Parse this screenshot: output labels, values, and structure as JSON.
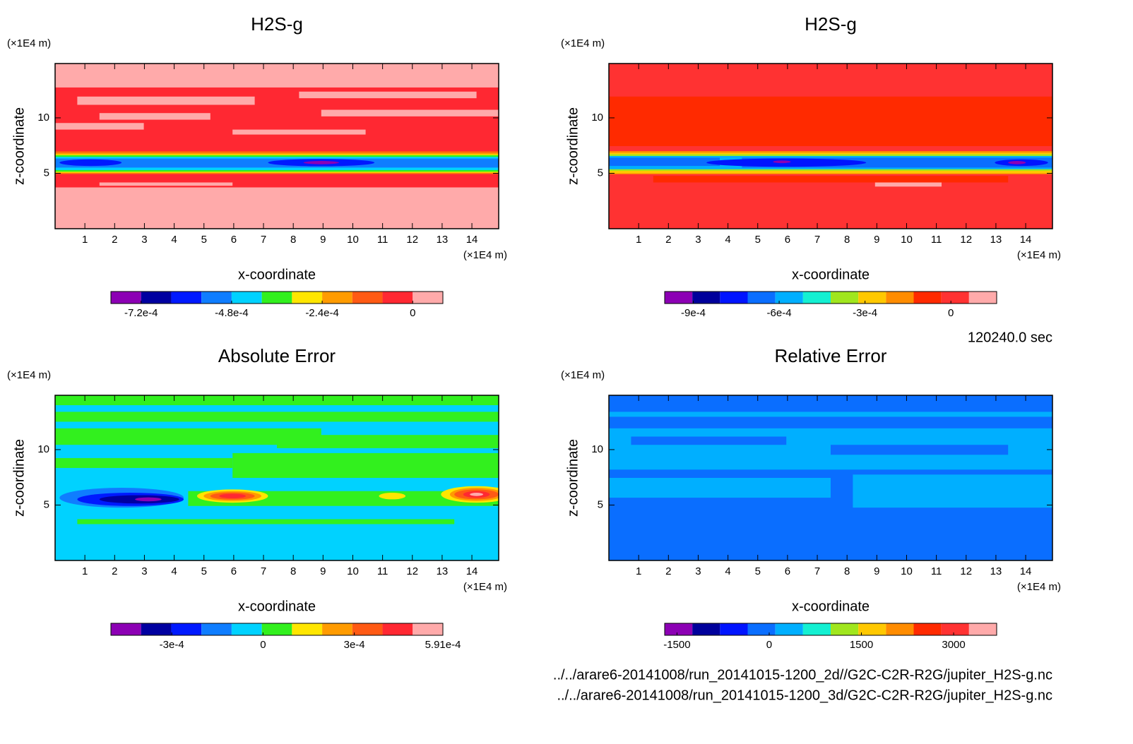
{
  "time_label": "120240.0 sec",
  "file_paths": [
    "../../arare6-20141008/run_20141015-1200_2d//G2C-C2R-R2G/jupiter_H2S-g.nc",
    "../../arare6-20141008/run_20141015-1200_3d/G2C-C2R-R2G/jupiter_H2S-g.nc"
  ],
  "chart_data": [
    {
      "type": "contour",
      "title": "H2S-g",
      "xlabel": "x-coordinate",
      "ylabel": "z-coordinate",
      "x_unit": "(×1E4 m)",
      "y_unit": "(×1E4 m)",
      "xlim": [
        0,
        14.9
      ],
      "ylim": [
        0,
        14.9
      ],
      "xticks": [
        1,
        2,
        3,
        4,
        5,
        6,
        7,
        8,
        9,
        10,
        11,
        12,
        13,
        14
      ],
      "yticks": [
        5,
        10
      ],
      "colorbar": {
        "lim": [
          -0.0008,
          8e-05
        ],
        "ticks": [
          {
            "value": -0.00072,
            "label": "-7.2e-4"
          },
          {
            "value": -0.00048,
            "label": "-4.8e-4"
          },
          {
            "value": -0.00024,
            "label": "-2.4e-4"
          },
          0
        ],
        "colors": [
          "#8c00b4",
          "#0000a0",
          "#0019ff",
          "#0f7dff",
          "#00d2ff",
          "#32f01e",
          "#ffe600",
          "#ff9b00",
          "#ff5a14",
          "#ff2832",
          "#ffaaaa"
        ]
      }
    },
    {
      "type": "contour",
      "title": "H2S-g",
      "xlabel": "x-coordinate",
      "ylabel": "z-coordinate",
      "x_unit": "(×1E4 m)",
      "y_unit": "(×1E4 m)",
      "xlim": [
        0,
        14.9
      ],
      "ylim": [
        0,
        14.9
      ],
      "xticks": [
        1,
        2,
        3,
        4,
        5,
        6,
        7,
        8,
        9,
        10,
        11,
        12,
        13,
        14
      ],
      "yticks": [
        5,
        10
      ],
      "colorbar": {
        "lim": [
          -0.001,
          0.00016
        ],
        "ticks": [
          {
            "value": -0.0009,
            "label": "-9e-4"
          },
          {
            "value": -0.0006,
            "label": "-6e-4"
          },
          {
            "value": -0.0003,
            "label": "-3e-4"
          },
          0
        ],
        "colors": [
          "#8c00b4",
          "#00009b",
          "#0014ff",
          "#0a6eff",
          "#00afff",
          "#14f0d2",
          "#a0e61e",
          "#ffc800",
          "#ff8c00",
          "#ff2a00",
          "#ff3232",
          "#ffaaaa"
        ]
      }
    },
    {
      "type": "contour",
      "title": "Absolute Error",
      "xlabel": "x-coordinate",
      "ylabel": "z-coordinate",
      "x_unit": "(×1E4 m)",
      "y_unit": "(×1E4 m)",
      "xlim": [
        0,
        14.9
      ],
      "ylim": [
        0,
        14.9
      ],
      "xticks": [
        1,
        2,
        3,
        4,
        5,
        6,
        7,
        8,
        9,
        10,
        11,
        12,
        13,
        14
      ],
      "yticks": [
        5,
        10
      ],
      "colorbar": {
        "lim": [
          -0.0005,
          0.000591
        ],
        "ticks": [
          {
            "value": -0.0003,
            "label": "-3e-4"
          },
          0,
          {
            "value": 0.0003,
            "label": "3e-4"
          },
          {
            "value": 0.000591,
            "label": "5.91e-4"
          }
        ],
        "colors": [
          "#8c00b4",
          "#0000a0",
          "#0019ff",
          "#0f7dff",
          "#00d2ff",
          "#32f01e",
          "#ffe600",
          "#ff9b00",
          "#ff5a14",
          "#ff2832",
          "#ffaaaa"
        ]
      }
    },
    {
      "type": "contour",
      "title": "Relative Error",
      "xlabel": "x-coordinate",
      "ylabel": "z-coordinate",
      "x_unit": "(×1E4 m)",
      "y_unit": "(×1E4 m)",
      "xlim": [
        0,
        14.9
      ],
      "ylim": [
        0,
        14.9
      ],
      "xticks": [
        1,
        2,
        3,
        4,
        5,
        6,
        7,
        8,
        9,
        10,
        11,
        12,
        13,
        14
      ],
      "yticks": [
        5,
        10
      ],
      "colorbar": {
        "lim": [
          -1700,
          3700
        ],
        "ticks": [
          -1500,
          0,
          1500,
          3000
        ],
        "colors": [
          "#8c00b4",
          "#00009b",
          "#0014ff",
          "#0a6eff",
          "#00afff",
          "#14f0d2",
          "#a0e61e",
          "#ffc800",
          "#ff8c00",
          "#ff2a00",
          "#ff3232",
          "#ffaaaa"
        ]
      }
    }
  ]
}
